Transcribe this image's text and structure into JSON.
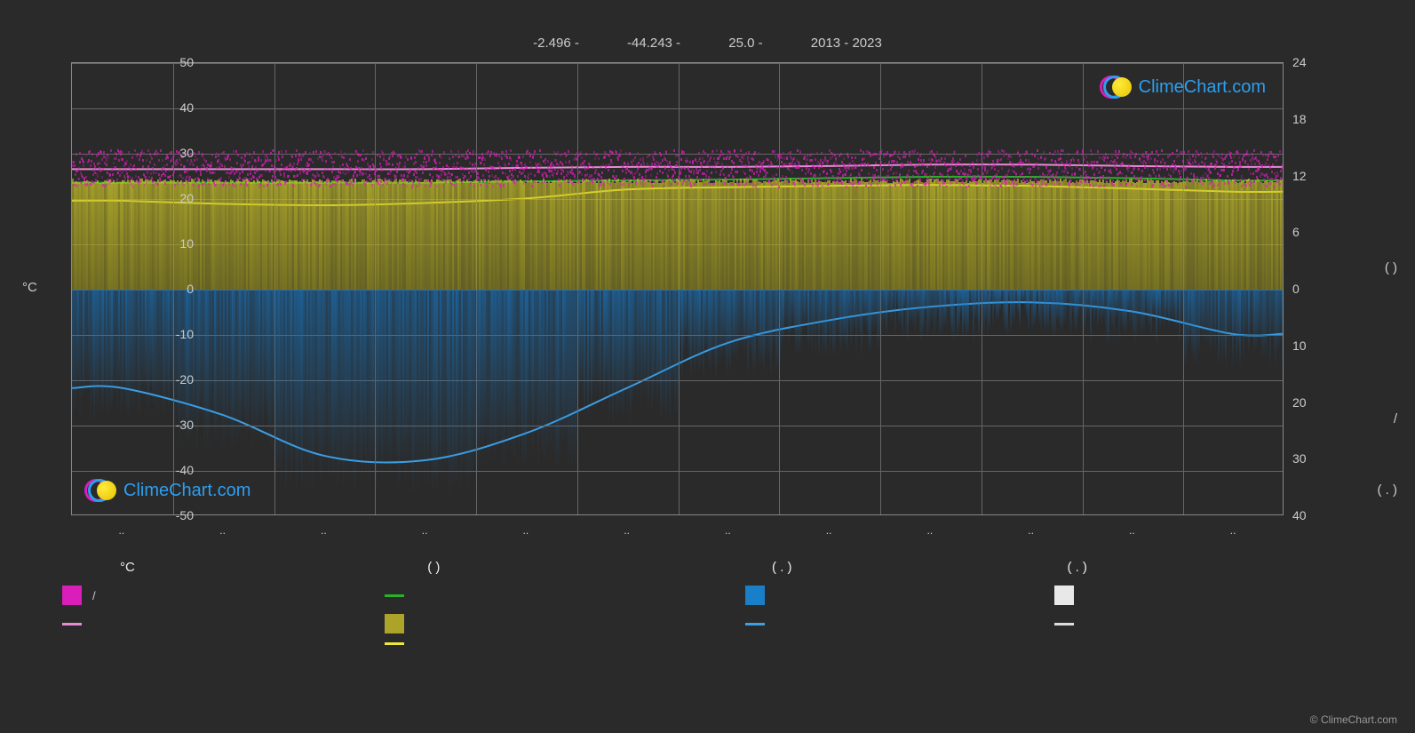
{
  "header": {
    "lat": "-2.496 -",
    "lon": "-44.243 -",
    "alt": "25.0 -",
    "years": "2013 - 2023"
  },
  "watermark_text": "ClimeChart.com",
  "copyright": "© ClimeChart.com",
  "colors": {
    "background": "#2a2a2a",
    "grid": "#666666",
    "border": "#888888",
    "text": "#cccccc",
    "temp_max_band": "#d91eba",
    "temp_max_line": "#e88ad4",
    "daylight_band": "#c9c22a",
    "daylight_line": "#f0e838",
    "mean_line": "#26b326",
    "precip_band": "#1a6fb3",
    "precip_line": "#3da0e6",
    "cloud_band": "#e8e8e8",
    "cloud_line": "#dddddd",
    "watermark_text": "#2c9ff0",
    "watermark_ring1": "#d91eba",
    "watermark_ring2": "#2c9ff0"
  },
  "y_left": {
    "title": "°C",
    "min": -50,
    "max": 50,
    "ticks": [
      50,
      40,
      30,
      20,
      10,
      0,
      -10,
      -20,
      -30,
      -40,
      -50
    ]
  },
  "y_right": {
    "ticks": [
      24,
      18,
      12,
      6,
      0,
      10,
      20,
      30,
      40
    ],
    "title_top": "( )",
    "title_mid": "/",
    "title_bot": "( . )"
  },
  "x": {
    "months": 12,
    "tick_label": ".."
  },
  "series": {
    "temp_max_line": [
      26.5,
      26.5,
      26.5,
      26.5,
      26.8,
      27.0,
      27.0,
      27.2,
      27.5,
      27.5,
      27.2,
      27.0
    ],
    "mean_line": [
      23.5,
      23.5,
      23.5,
      23.5,
      23.8,
      24.0,
      24.2,
      24.5,
      24.8,
      24.8,
      24.5,
      24.0
    ],
    "daylight_line": [
      19.5,
      18.8,
      18.5,
      19.0,
      20.0,
      22.0,
      22.5,
      22.8,
      23.0,
      22.8,
      22.2,
      21.5
    ],
    "precip_line": [
      -22,
      -28,
      -37,
      -38,
      -32,
      -22,
      -12,
      -7,
      -4,
      -3,
      -5,
      -10
    ],
    "daylight_fill_top": 24,
    "daylight_fill_bottom": 0,
    "temp_band_center": 27,
    "temp_band_spread": 4,
    "precip_band_top": 0,
    "precip_band_max": 44
  },
  "legend": {
    "headers": [
      "°C",
      "(          )",
      "(  . )",
      "(  . )"
    ],
    "row1": [
      {
        "type": "box",
        "color": "#d91eba",
        "label": "/"
      },
      {
        "type": "line",
        "color": "#26b326",
        "label": ""
      },
      {
        "type": "box",
        "color": "#1a7fc9",
        "label": ""
      },
      {
        "type": "box",
        "color": "#e8e8e8",
        "label": ""
      }
    ],
    "row2": [
      {
        "type": "line",
        "color": "#e88ad4",
        "label": ""
      },
      {
        "type": "box",
        "color": "#aba32a",
        "label": ""
      },
      {
        "type": "line",
        "color": "#3da0e6",
        "label": ""
      },
      {
        "type": "line",
        "color": "#dddddd",
        "label": ""
      }
    ],
    "row3": [
      null,
      {
        "type": "line",
        "color": "#f0e838",
        "label": ""
      },
      null,
      null
    ]
  }
}
